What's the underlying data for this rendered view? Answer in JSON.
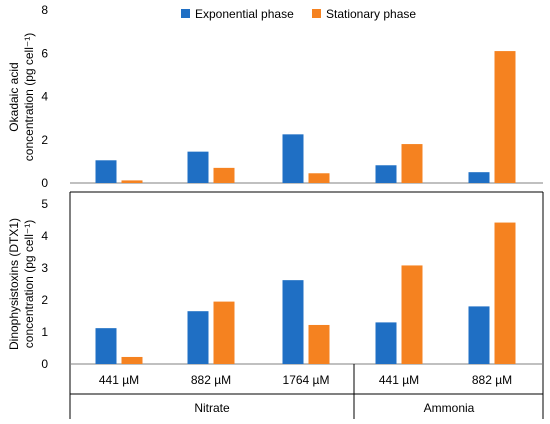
{
  "colors": {
    "exponential": "#1F6FC4",
    "stationary": "#F58220"
  },
  "legend": {
    "exponential": "Exponential phase",
    "stationary": "Stationary phase"
  },
  "chart_data": [
    {
      "type": "bar",
      "title": "",
      "ylabel_line1": "Okadaic acid",
      "ylabel_line2": "concentration (pg cell⁻¹)",
      "ylim": [
        0,
        8
      ],
      "yticks": [
        0,
        2,
        4,
        6,
        8
      ],
      "categories": [
        "441 µM",
        "882 µM",
        "1764 µM",
        "441 µM",
        "882 µM"
      ],
      "series": [
        {
          "name": "Exponential phase",
          "values": [
            1.05,
            1.45,
            2.25,
            0.82,
            0.5
          ]
        },
        {
          "name": "Stationary phase",
          "values": [
            0.12,
            0.7,
            0.45,
            1.8,
            6.1
          ]
        }
      ],
      "legend_position": "top"
    },
    {
      "type": "bar",
      "title": "",
      "ylabel_line1": "Dinophysistoxins (DTX1)",
      "ylabel_line2": "concentration (pg cell⁻¹)",
      "ylim": [
        0,
        5
      ],
      "yticks": [
        0,
        1,
        2,
        3,
        4,
        5
      ],
      "categories": [
        "441 µM",
        "882 µM",
        "1764 µM",
        "441 µM",
        "882 µM"
      ],
      "groups": [
        {
          "label": "Nitrate",
          "span": [
            0,
            2
          ]
        },
        {
          "label": "Ammonia",
          "span": [
            3,
            4
          ]
        }
      ],
      "series": [
        {
          "name": "Exponential phase",
          "values": [
            1.12,
            1.65,
            2.62,
            1.3,
            1.8
          ]
        },
        {
          "name": "Stationary phase",
          "values": [
            0.22,
            1.95,
            1.22,
            3.08,
            4.42
          ]
        }
      ]
    }
  ]
}
